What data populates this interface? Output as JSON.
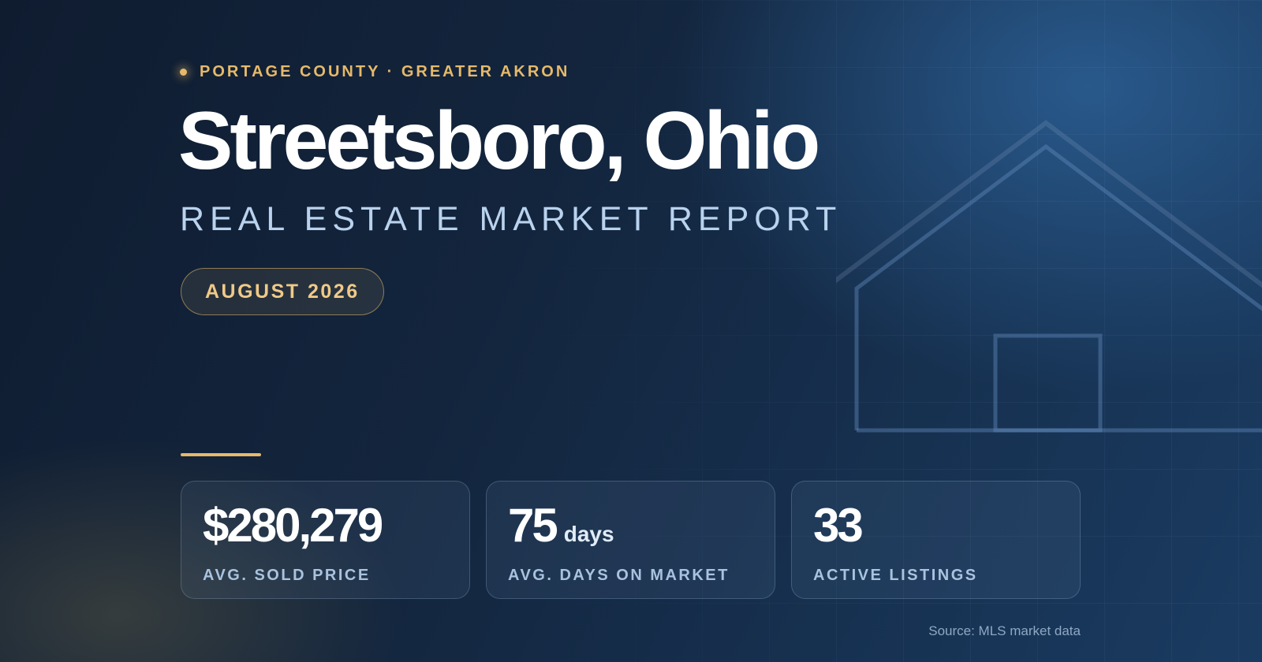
{
  "eyebrow": {
    "text": "PORTAGE COUNTY · GREATER AKRON"
  },
  "title": "Streetsboro, Ohio",
  "subtitle": "REAL ESTATE MARKET REPORT",
  "date_badge": "AUGUST 2026",
  "stats": [
    {
      "value": "$280,279",
      "unit": "",
      "label": "AVG. SOLD PRICE"
    },
    {
      "value": "75",
      "unit": "days",
      "label": "AVG. DAYS ON MARKET"
    },
    {
      "value": "33",
      "unit": "",
      "label": "ACTIVE LISTINGS"
    }
  ],
  "source": "Source: MLS market data",
  "colors": {
    "accent": "#e6b96a",
    "background": "#13253d",
    "subtitle": "#b9d2ee"
  },
  "icons": [
    "house-outline-icon"
  ]
}
